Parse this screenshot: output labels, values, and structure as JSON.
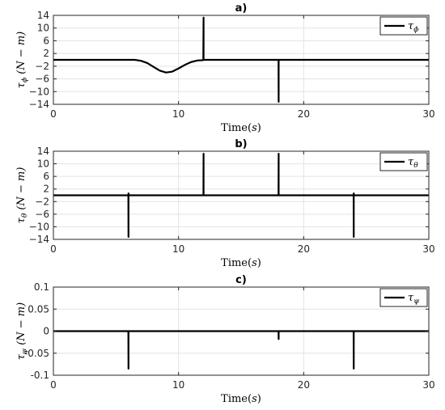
{
  "chart_data": [
    {
      "type": "line",
      "title": "a)",
      "xlabel_text": "Time",
      "xlabel_unit": "s",
      "ylabel_symbol": "τ",
      "ylabel_sub": "ϕ",
      "ylabel_unit": "N − m",
      "xlim": [
        0,
        30
      ],
      "ylim": [
        -14,
        14
      ],
      "xticks": [
        0,
        10,
        20,
        30
      ],
      "yticks": [
        14,
        10,
        6,
        2,
        -2,
        -6,
        -10,
        -14
      ],
      "ytick_labels": [
        "14",
        "10",
        "6",
        "2",
        "−2",
        "−6",
        "−10",
        "−14"
      ],
      "grid": true,
      "legend_position": "top-right",
      "series": [
        {
          "name_symbol": "τ",
          "name_sub": "ϕ",
          "x": [
            0,
            6.5,
            7,
            7.5,
            8,
            8.5,
            9,
            9.5,
            10,
            10.5,
            11,
            11.5,
            11.98,
            12.0,
            12.0,
            12.02,
            12.5,
            13,
            14,
            17.99,
            18.0,
            18.0,
            18.01,
            30
          ],
          "y": [
            0,
            0,
            -0.3,
            -1.0,
            -2.2,
            -3.4,
            -4.0,
            -3.7,
            -2.7,
            -1.6,
            -0.7,
            -0.2,
            -0.1,
            13.3,
            0,
            0,
            0,
            0,
            0,
            0,
            -13.2,
            0,
            0,
            0
          ]
        }
      ]
    },
    {
      "type": "line",
      "title": "b)",
      "xlabel_text": "Time",
      "xlabel_unit": "s",
      "ylabel_symbol": "τ",
      "ylabel_sub": "θ",
      "ylabel_unit": "N − m",
      "xlim": [
        0,
        30
      ],
      "ylim": [
        -14,
        14
      ],
      "xticks": [
        0,
        10,
        20,
        30
      ],
      "yticks": [
        14,
        10,
        6,
        2,
        -2,
        -6,
        -10,
        -14
      ],
      "ytick_labels": [
        "14",
        "10",
        "6",
        "2",
        "−2",
        "−6",
        "−10",
        "−14"
      ],
      "grid": true,
      "legend_position": "top-right",
      "series": [
        {
          "name_symbol": "τ",
          "name_sub": "θ",
          "x": [
            0,
            5.99,
            6.0,
            6.0,
            6.02,
            11.99,
            12.0,
            12.0,
            12.02,
            17.99,
            18.0,
            18.0,
            18.02,
            23.99,
            24.0,
            24.0,
            24.02,
            30
          ],
          "y": [
            0,
            0,
            -13.2,
            0.6,
            0,
            0,
            13.2,
            0,
            0,
            0,
            13.2,
            0,
            0,
            0,
            -13.2,
            0.6,
            0,
            0
          ]
        }
      ]
    },
    {
      "type": "line",
      "title": "c)",
      "xlabel_text": "Time",
      "xlabel_unit": "s",
      "ylabel_symbol": "τ",
      "ylabel_sub": "ψ",
      "ylabel_unit": "N − m",
      "xlim": [
        0,
        30
      ],
      "ylim": [
        -0.1,
        0.1
      ],
      "xticks": [
        0,
        10,
        20,
        30
      ],
      "yticks": [
        0.1,
        0.05,
        0,
        -0.05,
        -0.1
      ],
      "ytick_labels": [
        "0.1",
        "0.05",
        "0",
        "-0.05",
        "-0.1"
      ],
      "grid": true,
      "legend_position": "top-right",
      "series": [
        {
          "name_symbol": "τ",
          "name_sub": "ψ",
          "x": [
            0,
            5.99,
            6.0,
            6.0,
            6.02,
            17.99,
            18.0,
            18.0,
            18.02,
            23.99,
            24.0,
            24.0,
            24.02,
            30
          ],
          "y": [
            0,
            0,
            -0.085,
            0,
            0,
            0,
            -0.018,
            0,
            0,
            0,
            -0.085,
            0,
            0,
            0
          ]
        }
      ]
    }
  ]
}
